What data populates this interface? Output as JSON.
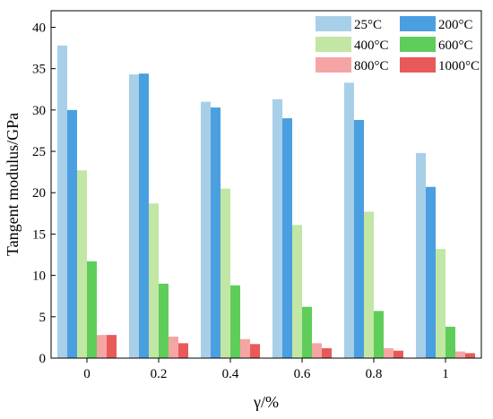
{
  "chart_data": {
    "type": "bar",
    "xlabel": "γ/%",
    "ylabel": "Tangent modulus/GPa",
    "ylim": [
      0,
      42
    ],
    "yticks": [
      0,
      5,
      10,
      15,
      20,
      25,
      30,
      35,
      40
    ],
    "categories": [
      "0",
      "0.2",
      "0.4",
      "0.6",
      "0.8",
      "1"
    ],
    "grid": false,
    "legend_position": "top-right",
    "series": [
      {
        "name": "25°C",
        "color": "#a8cfe8",
        "values": [
          37.8,
          34.3,
          31.0,
          31.3,
          33.3,
          24.8
        ]
      },
      {
        "name": "200°C",
        "color": "#4a9fe0",
        "values": [
          30.0,
          34.4,
          30.3,
          29.0,
          28.8,
          20.7
        ]
      },
      {
        "name": "400°C",
        "color": "#c2e6a4",
        "values": [
          22.7,
          18.7,
          20.5,
          16.1,
          17.7,
          13.2
        ]
      },
      {
        "name": "600°C",
        "color": "#5fcd5a",
        "values": [
          11.7,
          9.0,
          8.8,
          6.2,
          5.7,
          3.8
        ]
      },
      {
        "name": "800°C",
        "color": "#f6a5a5",
        "values": [
          2.8,
          2.6,
          2.3,
          1.8,
          1.2,
          0.8
        ]
      },
      {
        "name": "1000°C",
        "color": "#e85a5a",
        "values": [
          2.8,
          1.8,
          1.7,
          1.2,
          0.9,
          0.6
        ]
      }
    ]
  }
}
